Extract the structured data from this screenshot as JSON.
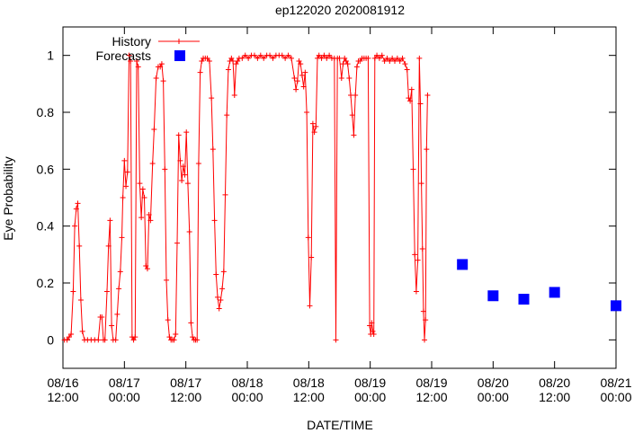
{
  "chart_data": {
    "type": "scatter",
    "title": "ep122020 2020081912",
    "xlabel": "DATE/TIME",
    "ylabel": "Eye Probability",
    "ylim": [
      -0.1,
      1.1
    ],
    "y_ticks": [
      "0",
      "0.2",
      "0.4",
      "0.6",
      "0.8",
      "1"
    ],
    "x_ticks": [
      {
        "t": 0,
        "line1": "08/16",
        "line2": "12:00"
      },
      {
        "t": 12,
        "line1": "08/17",
        "line2": "00:00"
      },
      {
        "t": 24,
        "line1": "08/17",
        "line2": "12:00"
      },
      {
        "t": 36,
        "line1": "08/18",
        "line2": "00:00"
      },
      {
        "t": 48,
        "line1": "08/18",
        "line2": "12:00"
      },
      {
        "t": 60,
        "line1": "08/19",
        "line2": "00:00"
      },
      {
        "t": 72,
        "line1": "08/19",
        "line2": "12:00"
      },
      {
        "t": 84,
        "line1": "08/20",
        "line2": "00:00"
      },
      {
        "t": 96,
        "line1": "08/20",
        "line2": "12:00"
      },
      {
        "t": 108,
        "line1": "08/21",
        "line2": "00:00"
      }
    ],
    "x_unit": "hours after 08/16 12:00",
    "xlim": [
      0,
      108
    ],
    "legend_position": "top-left",
    "series": [
      {
        "name": "History",
        "color": "#ff0000",
        "style": "line-with-plus-markers",
        "points": [
          [
            0.3,
            0.0
          ],
          [
            0.8,
            0.0
          ],
          [
            1.2,
            0.01
          ],
          [
            1.6,
            0.02
          ],
          [
            2.0,
            0.17
          ],
          [
            2.3,
            0.4
          ],
          [
            2.6,
            0.46
          ],
          [
            2.9,
            0.48
          ],
          [
            3.2,
            0.33
          ],
          [
            3.5,
            0.14
          ],
          [
            3.8,
            0.03
          ],
          [
            4.2,
            0.0
          ],
          [
            4.8,
            0.0
          ],
          [
            5.5,
            0.0
          ],
          [
            6.2,
            0.0
          ],
          [
            6.9,
            0.0
          ],
          [
            7.3,
            0.08
          ],
          [
            7.6,
            0.08
          ],
          [
            7.9,
            0.0
          ],
          [
            8.2,
            0.0
          ],
          [
            8.6,
            0.17
          ],
          [
            8.9,
            0.33
          ],
          [
            9.2,
            0.42
          ],
          [
            9.5,
            0.05
          ],
          [
            9.8,
            0.0
          ],
          [
            10.3,
            0.0
          ],
          [
            10.6,
            0.09
          ],
          [
            10.9,
            0.18
          ],
          [
            11.2,
            0.24
          ],
          [
            11.5,
            0.36
          ],
          [
            11.7,
            0.5
          ],
          [
            12.0,
            0.63
          ],
          [
            12.3,
            0.54
          ],
          [
            12.6,
            0.59
          ],
          [
            12.9,
            1.0
          ],
          [
            13.2,
            0.98
          ],
          [
            13.5,
            0.01
          ],
          [
            13.8,
            0.0
          ],
          [
            14.1,
            0.01
          ],
          [
            14.4,
            0.98
          ],
          [
            14.7,
            0.96
          ],
          [
            15.0,
            0.55
          ],
          [
            15.3,
            0.43
          ],
          [
            15.6,
            0.53
          ],
          [
            15.9,
            0.5
          ],
          [
            16.2,
            0.26
          ],
          [
            16.5,
            0.25
          ],
          [
            16.8,
            0.44
          ],
          [
            17.1,
            0.42
          ],
          [
            17.5,
            0.62
          ],
          [
            17.8,
            0.74
          ],
          [
            18.2,
            0.92
          ],
          [
            18.6,
            0.96
          ],
          [
            19.0,
            0.96
          ],
          [
            19.3,
            0.97
          ],
          [
            19.6,
            0.91
          ],
          [
            19.9,
            0.6
          ],
          [
            20.2,
            0.21
          ],
          [
            20.5,
            0.07
          ],
          [
            20.8,
            0.01
          ],
          [
            21.1,
            0.0
          ],
          [
            21.4,
            0.0
          ],
          [
            21.7,
            0.0
          ],
          [
            22.0,
            0.02
          ],
          [
            22.3,
            0.34
          ],
          [
            22.6,
            0.72
          ],
          [
            22.9,
            0.63
          ],
          [
            23.2,
            0.56
          ],
          [
            23.5,
            0.61
          ],
          [
            23.8,
            0.58
          ],
          [
            24.1,
            0.73
          ],
          [
            24.4,
            0.55
          ],
          [
            24.7,
            0.38
          ],
          [
            25.0,
            0.06
          ],
          [
            25.3,
            0.01
          ],
          [
            25.6,
            0.0
          ],
          [
            25.9,
            0.0
          ],
          [
            26.2,
            0.0
          ],
          [
            26.5,
            0.62
          ],
          [
            26.8,
            0.94
          ],
          [
            27.1,
            0.98
          ],
          [
            27.4,
            0.99
          ],
          [
            27.8,
            0.99
          ],
          [
            28.2,
            0.99
          ],
          [
            28.6,
            0.98
          ],
          [
            29.0,
            0.85
          ],
          [
            29.3,
            0.67
          ],
          [
            29.6,
            0.42
          ],
          [
            29.9,
            0.23
          ],
          [
            30.2,
            0.15
          ],
          [
            30.5,
            0.11
          ],
          [
            30.8,
            0.14
          ],
          [
            31.1,
            0.18
          ],
          [
            31.4,
            0.24
          ],
          [
            31.7,
            0.51
          ],
          [
            32.0,
            0.79
          ],
          [
            32.3,
            0.95
          ],
          [
            32.6,
            0.98
          ],
          [
            32.9,
            0.99
          ],
          [
            33.2,
            0.98
          ],
          [
            33.5,
            0.86
          ],
          [
            33.8,
            0.97
          ],
          [
            34.1,
            0.98
          ],
          [
            34.4,
            0.99
          ],
          [
            35.0,
            0.99
          ],
          [
            35.6,
            1.0
          ],
          [
            36.2,
            0.99
          ],
          [
            36.8,
            1.0
          ],
          [
            37.4,
            1.0
          ],
          [
            38.0,
            0.99
          ],
          [
            38.6,
            1.0
          ],
          [
            39.2,
            0.99
          ],
          [
            39.8,
            1.0
          ],
          [
            40.4,
            1.0
          ],
          [
            41.0,
            0.99
          ],
          [
            41.6,
            1.0
          ],
          [
            42.2,
            1.0
          ],
          [
            42.8,
            1.0
          ],
          [
            43.4,
            0.99
          ],
          [
            44.0,
            1.0
          ],
          [
            44.6,
            0.99
          ],
          [
            45.2,
            0.92
          ],
          [
            45.5,
            0.88
          ],
          [
            45.8,
            0.91
          ],
          [
            46.1,
            0.98
          ],
          [
            46.4,
            0.97
          ],
          [
            46.7,
            0.93
          ],
          [
            47.0,
            0.89
          ],
          [
            47.3,
            0.94
          ],
          [
            47.6,
            0.8
          ],
          [
            47.9,
            0.36
          ],
          [
            48.2,
            0.12
          ],
          [
            48.5,
            0.29
          ],
          [
            48.8,
            0.76
          ],
          [
            49.1,
            0.73
          ],
          [
            49.4,
            0.75
          ],
          [
            49.7,
            0.99
          ],
          [
            50.0,
            1.0
          ],
          [
            50.5,
            0.99
          ],
          [
            51.0,
            1.0
          ],
          [
            51.5,
            0.99
          ],
          [
            52.0,
            1.0
          ],
          [
            52.5,
            0.99
          ],
          [
            53.0,
            0.99
          ],
          [
            53.3,
            0.0
          ],
          [
            53.6,
            0.99
          ],
          [
            54.0,
            0.99
          ],
          [
            54.4,
            0.92
          ],
          [
            54.7,
            0.97
          ],
          [
            55.0,
            0.99
          ],
          [
            55.3,
            0.98
          ],
          [
            55.6,
            0.97
          ],
          [
            55.9,
            0.92
          ],
          [
            56.2,
            0.86
          ],
          [
            56.5,
            0.79
          ],
          [
            56.8,
            0.72
          ],
          [
            57.1,
            0.86
          ],
          [
            57.4,
            0.96
          ],
          [
            57.7,
            0.98
          ],
          [
            58.0,
            0.98
          ],
          [
            58.4,
            0.99
          ],
          [
            58.8,
            0.99
          ],
          [
            59.2,
            0.99
          ],
          [
            59.6,
            0.99
          ],
          [
            59.9,
            0.05
          ],
          [
            60.1,
            0.02
          ],
          [
            60.3,
            0.06
          ],
          [
            60.5,
            0.03
          ],
          [
            60.7,
            0.02
          ],
          [
            60.9,
            0.99
          ],
          [
            61.3,
            1.0
          ],
          [
            61.8,
            0.99
          ],
          [
            62.3,
            1.0
          ],
          [
            62.8,
            0.98
          ],
          [
            63.3,
            0.99
          ],
          [
            63.8,
            0.98
          ],
          [
            64.3,
            0.99
          ],
          [
            64.8,
            0.98
          ],
          [
            65.3,
            0.99
          ],
          [
            65.8,
            0.98
          ],
          [
            66.3,
            0.99
          ],
          [
            66.8,
            0.97
          ],
          [
            67.2,
            0.95
          ],
          [
            67.5,
            0.85
          ],
          [
            67.8,
            0.84
          ],
          [
            68.1,
            0.88
          ],
          [
            68.4,
            0.6
          ],
          [
            68.7,
            0.3
          ],
          [
            69.0,
            0.17
          ],
          [
            69.3,
            0.28
          ],
          [
            69.6,
            0.99
          ],
          [
            69.8,
            0.83
          ],
          [
            70.0,
            0.55
          ],
          [
            70.2,
            0.32
          ],
          [
            70.4,
            0.1
          ],
          [
            70.6,
            0.0
          ],
          [
            70.8,
            0.07
          ],
          [
            71.0,
            0.67
          ],
          [
            71.2,
            0.86
          ]
        ]
      },
      {
        "name": "Forecasts",
        "color": "#0000ff",
        "style": "square-markers",
        "points": [
          [
            78,
            0.265
          ],
          [
            84,
            0.155
          ],
          [
            90,
            0.143
          ],
          [
            96,
            0.167
          ],
          [
            108,
            0.12
          ]
        ]
      }
    ]
  }
}
